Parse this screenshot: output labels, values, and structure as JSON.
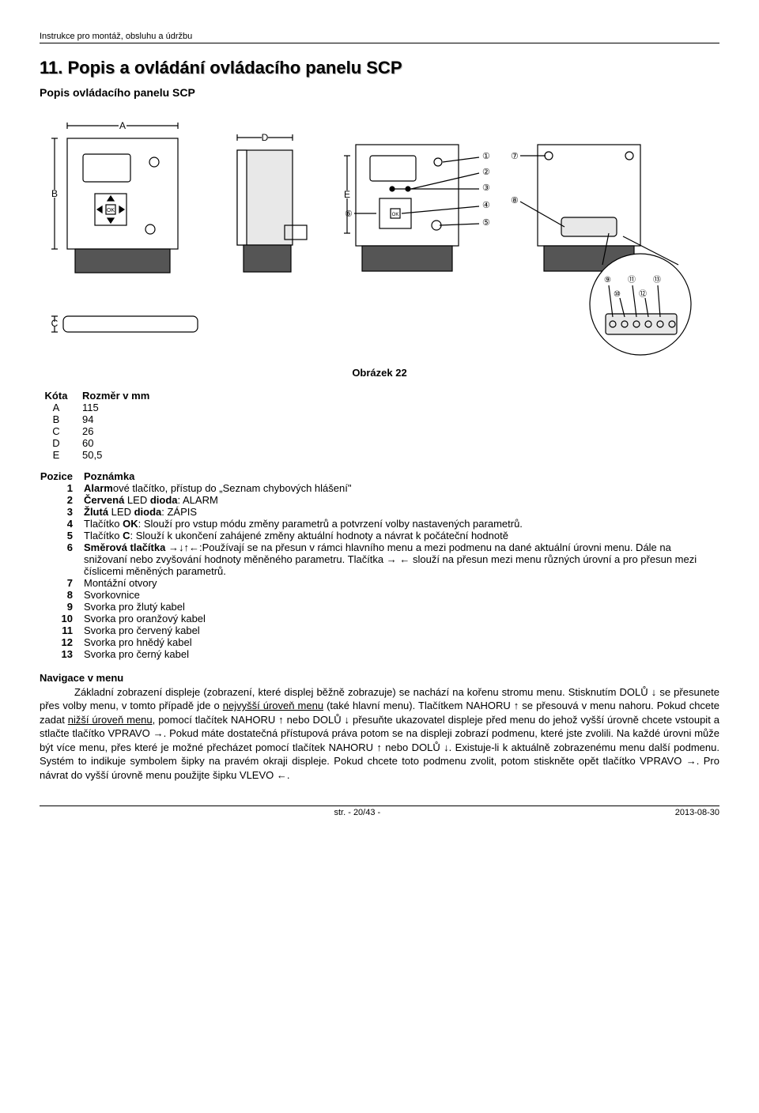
{
  "header": "Instrukce pro montáž, obsluhu a údržbu",
  "section_number": "11.",
  "section_title": "Popis a ovládání ovládacího panelu SCP",
  "subtitle": "Popis ovládacího panelu SCP",
  "figure_caption": "Obrázek 22",
  "kota": {
    "head_l": "Kóta",
    "head_r": "Rozměr v mm",
    "rows": [
      {
        "k": "A",
        "v": "115"
      },
      {
        "k": "B",
        "v": "94"
      },
      {
        "k": "C",
        "v": "26"
      },
      {
        "k": "D",
        "v": "60"
      },
      {
        "k": "E",
        "v": "50,5"
      }
    ]
  },
  "pozice": {
    "head_l": "Pozice",
    "head_r": "Poznámka",
    "rows": [
      {
        "k": "1",
        "html": "<b>Alarm</b>ové tlačítko, přístup do „Seznam chybových hlášení\""
      },
      {
        "k": "2",
        "html": "<b>Červená</b> LED <b>dioda</b>: ALARM"
      },
      {
        "k": "3",
        "html": "<b>Žlutá</b> LED <b>dioda</b>: ZÁPIS"
      },
      {
        "k": "4",
        "html": "Tlačítko <b>OK</b>: Slouží pro vstup módu změny parametrů a potvrzení volby nastavených parametrů."
      },
      {
        "k": "5",
        "html": "Tlačítko <b>C</b>: Slouží k ukončení zahájené změny aktuální hodnoty a návrat k počáteční hodnotě"
      },
      {
        "k": "6",
        "html": "<b>Směrová tlačítka</b> →↓↑←:Používají se na přesun v rámci hlavního menu a mezi podmenu na dané aktuální úrovni menu. Dále na snižovaní nebo zvyšování hodnoty měněného parametru. Tlačítka → ← slouží na přesun mezi menu různých úrovní a pro přesun mezi číslicemi měněných parametrů."
      },
      {
        "k": "7",
        "html": "Montážní otvory"
      },
      {
        "k": "8",
        "html": "Svorkovnice"
      },
      {
        "k": "9",
        "html": "Svorka pro žlutý kabel"
      },
      {
        "k": "10",
        "html": "Svorka pro oranžový kabel"
      },
      {
        "k": "11",
        "html": "Svorka pro červený kabel"
      },
      {
        "k": "12",
        "html": "Svorka pro hnědý kabel"
      },
      {
        "k": "13",
        "html": "Svorka pro černý kabel"
      }
    ]
  },
  "nav_title": "Navigace v menu",
  "nav_body": "Základní zobrazení displeje (zobrazení, které displej běžně zobrazuje) se nachází na kořenu stromu menu. Stisknutím DOLŮ ↓ se přesunete přes volby menu, v tomto případě jde o <u>nejvyšší úroveň menu</u> (také hlavní menu). Tlačítkem NAHORU ↑ se přesouvá v menu nahoru. Pokud chcete zadat <u>nižší úroveň menu</u>, pomocí tlačítek NAHORU ↑ nebo DOLŮ ↓ přesuňte ukazovatel displeje před menu do jehož vyšší úrovně chcete vstoupit a stlačte tlačítko VPRAVO →. Pokud máte dostatečná přístupová práva potom se na displeji zobrazí podmenu, které jste zvolili. Na každé úrovni může být více menu, přes které je možné přecházet pomocí tlačítek NAHORU ↑ nebo DOLŮ ↓. Existuje-li k aktuálně zobrazenému menu další podmenu. Systém to indikuje symbolem šipky na pravém okraji displeje. Pokud chcete toto podmenu zvolit, potom stiskněte opět tlačítko VPRAVO →. Pro návrat do vyšší úrovně menu použijte šipku VLEVO ←.",
  "footer_center": "str. - 20/43 -",
  "footer_right": "2013-08-30"
}
